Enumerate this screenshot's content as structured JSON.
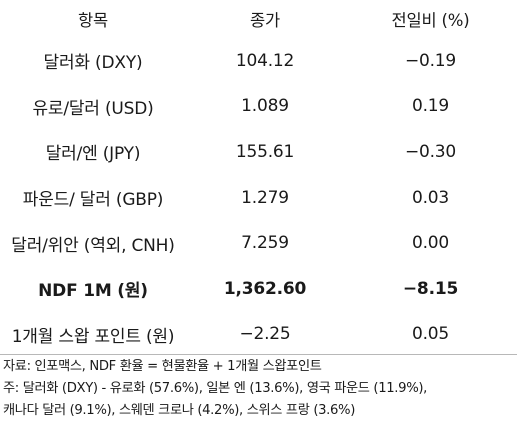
{
  "table": {
    "headers": [
      "항목",
      "종가",
      "전일비 (%)"
    ],
    "rows": [
      {
        "item": "달러화 (DXY)",
        "close": "104.12",
        "change": "−0.19"
      },
      {
        "item": "유로/달러 (USD)",
        "close": "1.089",
        "change": "0.19"
      },
      {
        "item": "달러/엔 (JPY)",
        "close": "155.61",
        "change": "−0.30"
      },
      {
        "item": "파운드/ 달러 (GBP)",
        "close": "1.279",
        "change": "0.03"
      },
      {
        "item": "달러/위안 (역외, CNH)",
        "close": "7.259",
        "change": "0.00"
      },
      {
        "item": "NDF 1M (원)",
        "close": "1,362.60",
        "change": "−8.15"
      },
      {
        "item": "1개월 스왑 포인트 (원)",
        "close": "−2.25",
        "change": "0.05"
      }
    ]
  },
  "notes": {
    "source": "자료: 인포맥스, NDF 환율 = 현물환율 + 1개월 스왑포인트",
    "note_line1": "주: 달러화 (DXY) - 유로화 (57.6%), 일본 엔 (13.6%), 영국 파운드 (11.9%),",
    "note_line2": "캐나다 달러 (9.1%), 스웨덴 크로나 (4.2%), 스위스 프랑 (3.6%)"
  }
}
